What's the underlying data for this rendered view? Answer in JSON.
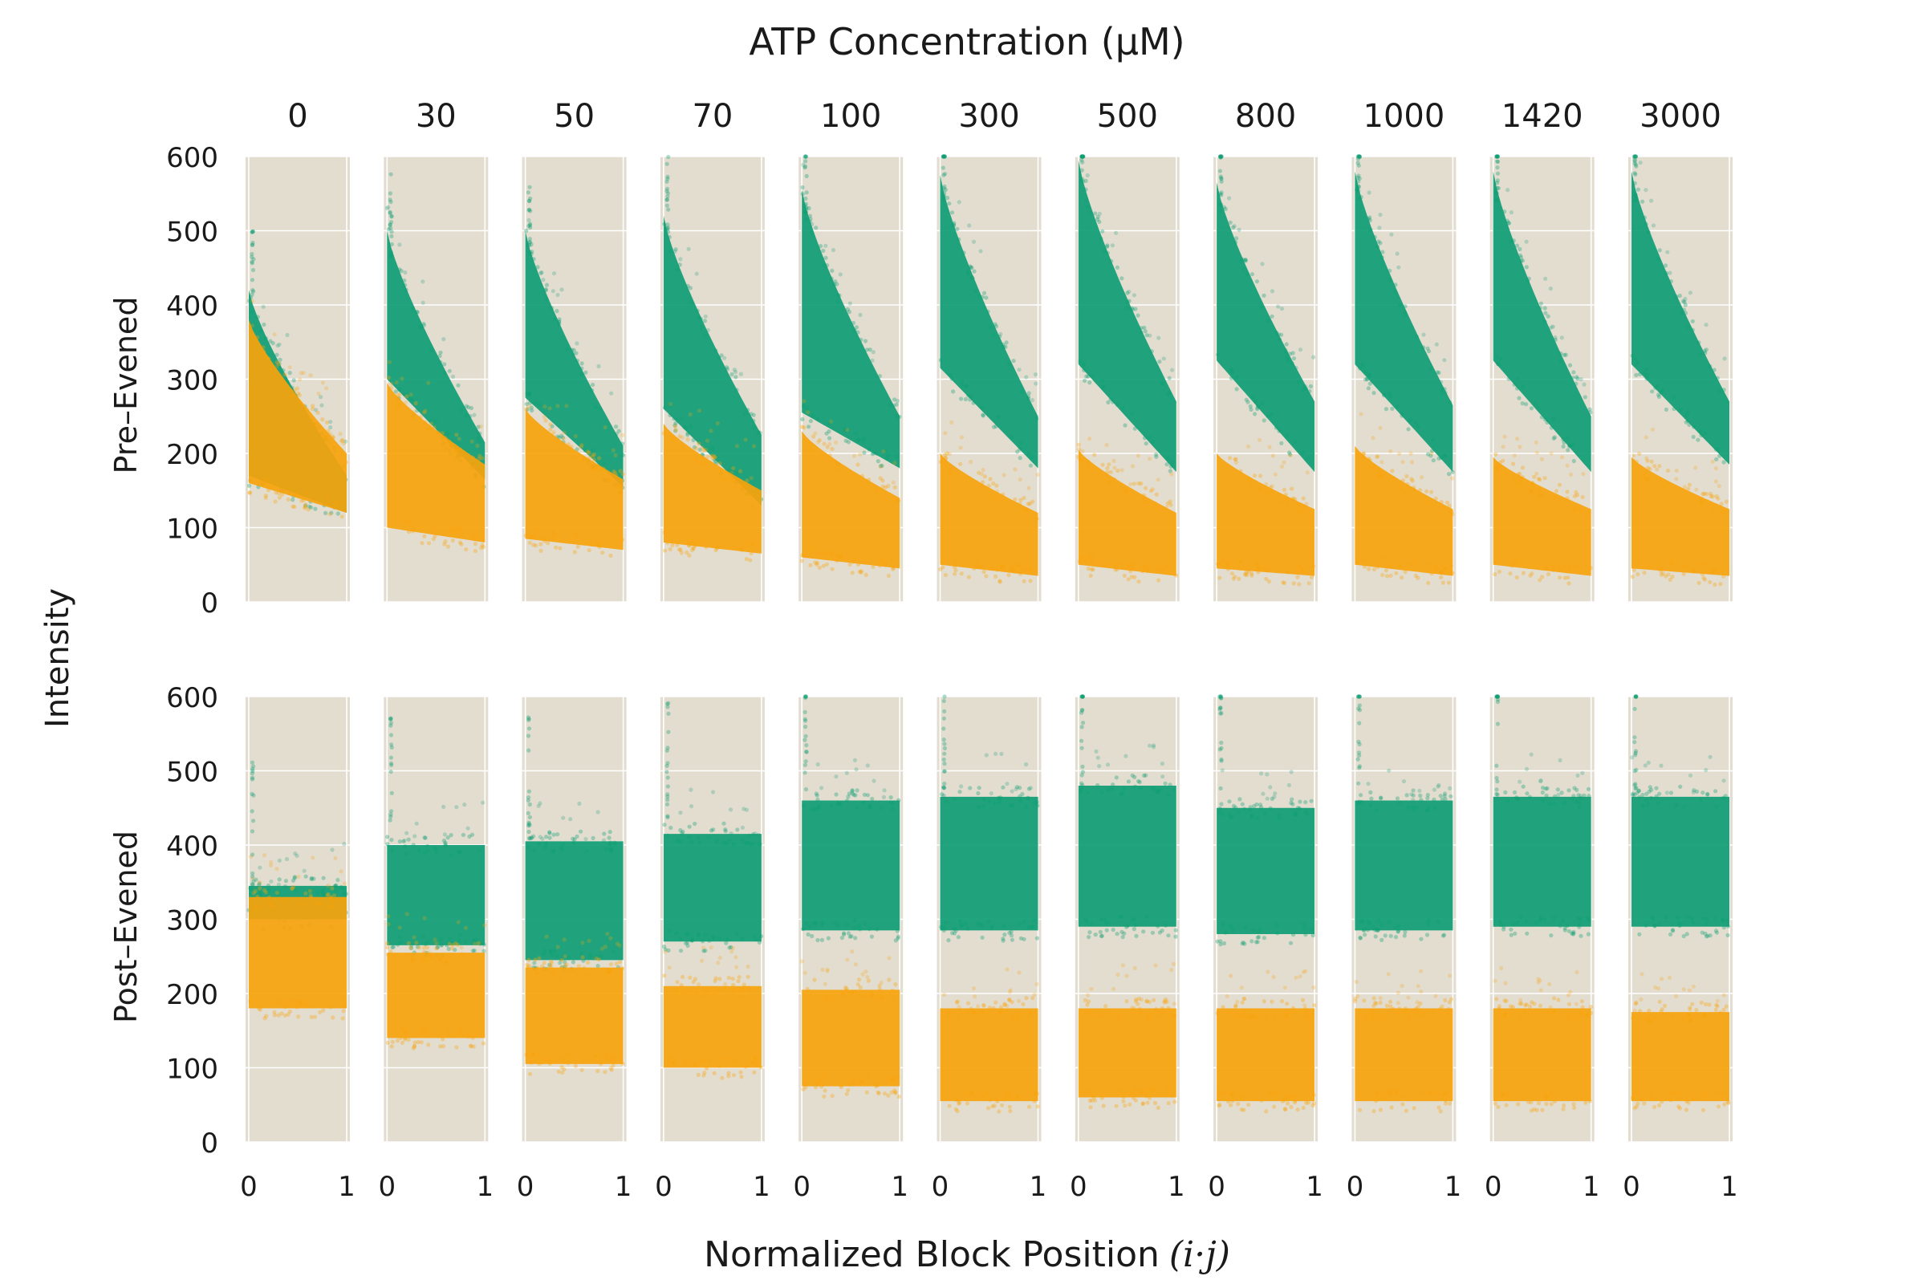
{
  "chart_data": {
    "type": "scatter",
    "title": "ATP Concentration (µM)",
    "xlabel": "Normalized Block Position (i·j)",
    "xlabel_main": "Normalized Block Position",
    "xlabel_math": "(i·j)",
    "ylabel": "Intensity",
    "row_labels": [
      "Pre–Evened",
      "Post–Evened"
    ],
    "panel_titles": [
      "0",
      "30",
      "50",
      "70",
      "100",
      "300",
      "500",
      "800",
      "1000",
      "1420",
      "3000"
    ],
    "xlim": [
      0,
      1
    ],
    "ylim": [
      0,
      600
    ],
    "x_ticks": [
      "0",
      "1"
    ],
    "y_ticks": [
      0,
      100,
      200,
      300,
      400,
      500,
      600
    ],
    "background_color": "#e3ddd0",
    "grid": true,
    "series": [
      {
        "color": "#0f9d74"
      },
      {
        "color": "#f7a30c"
      }
    ],
    "pre_evened": {
      "green_band": [
        {
          "atp": "0",
          "top": [
            420,
            170
          ],
          "bottom": [
            170,
            120
          ]
        },
        {
          "atp": "30",
          "top": [
            500,
            215
          ],
          "bottom": [
            300,
            165
          ]
        },
        {
          "atp": "50",
          "top": [
            500,
            210
          ],
          "bottom": [
            275,
            155
          ]
        },
        {
          "atp": "70",
          "top": [
            520,
            225
          ],
          "bottom": [
            260,
            130
          ]
        },
        {
          "atp": "100",
          "top": [
            555,
            250
          ],
          "bottom": [
            255,
            180
          ]
        },
        {
          "atp": "300",
          "top": [
            575,
            250
          ],
          "bottom": [
            315,
            180
          ]
        },
        {
          "atp": "500",
          "top": [
            595,
            270
          ],
          "bottom": [
            320,
            175
          ]
        },
        {
          "atp": "800",
          "top": [
            565,
            270
          ],
          "bottom": [
            325,
            175
          ]
        },
        {
          "atp": "1000",
          "top": [
            580,
            265
          ],
          "bottom": [
            320,
            175
          ]
        },
        {
          "atp": "1420",
          "top": [
            580,
            250
          ],
          "bottom": [
            325,
            175
          ]
        },
        {
          "atp": "3000",
          "top": [
            580,
            270
          ],
          "bottom": [
            320,
            185
          ]
        }
      ],
      "orange_band": [
        {
          "atp": "0",
          "top": [
            380,
            200
          ],
          "bottom": [
            160,
            120
          ]
        },
        {
          "atp": "30",
          "top": [
            295,
            185
          ],
          "bottom": [
            100,
            80
          ]
        },
        {
          "atp": "50",
          "top": [
            260,
            165
          ],
          "bottom": [
            85,
            70
          ]
        },
        {
          "atp": "70",
          "top": [
            240,
            150
          ],
          "bottom": [
            80,
            65
          ]
        },
        {
          "atp": "100",
          "top": [
            230,
            140
          ],
          "bottom": [
            60,
            45
          ]
        },
        {
          "atp": "300",
          "top": [
            200,
            120
          ],
          "bottom": [
            50,
            35
          ]
        },
        {
          "atp": "500",
          "top": [
            205,
            120
          ],
          "bottom": [
            50,
            35
          ]
        },
        {
          "atp": "800",
          "top": [
            200,
            125
          ],
          "bottom": [
            45,
            35
          ]
        },
        {
          "atp": "1000",
          "top": [
            210,
            125
          ],
          "bottom": [
            50,
            35
          ]
        },
        {
          "atp": "1420",
          "top": [
            195,
            125
          ],
          "bottom": [
            50,
            35
          ]
        },
        {
          "atp": "3000",
          "top": [
            195,
            125
          ],
          "bottom": [
            45,
            35
          ]
        }
      ]
    },
    "post_evened": {
      "green_band": [
        {
          "atp": "0",
          "low": 300,
          "high": 345
        },
        {
          "atp": "30",
          "low": 265,
          "high": 400
        },
        {
          "atp": "50",
          "low": 245,
          "high": 405
        },
        {
          "atp": "70",
          "low": 270,
          "high": 415
        },
        {
          "atp": "100",
          "low": 285,
          "high": 460
        },
        {
          "atp": "300",
          "low": 285,
          "high": 465
        },
        {
          "atp": "500",
          "low": 290,
          "high": 480
        },
        {
          "atp": "800",
          "low": 280,
          "high": 450
        },
        {
          "atp": "1000",
          "low": 285,
          "high": 460
        },
        {
          "atp": "1420",
          "low": 290,
          "high": 465
        },
        {
          "atp": "3000",
          "low": 290,
          "high": 465
        }
      ],
      "orange_band": [
        {
          "atp": "0",
          "low": 180,
          "high": 330
        },
        {
          "atp": "30",
          "low": 140,
          "high": 255
        },
        {
          "atp": "50",
          "low": 105,
          "high": 235
        },
        {
          "atp": "70",
          "low": 100,
          "high": 210
        },
        {
          "atp": "100",
          "low": 75,
          "high": 205
        },
        {
          "atp": "300",
          "low": 55,
          "high": 180
        },
        {
          "atp": "500",
          "low": 60,
          "high": 180
        },
        {
          "atp": "800",
          "low": 55,
          "high": 180
        },
        {
          "atp": "1000",
          "low": 55,
          "high": 180
        },
        {
          "atp": "1420",
          "low": 55,
          "high": 180
        },
        {
          "atp": "3000",
          "low": 55,
          "high": 175
        }
      ]
    }
  }
}
